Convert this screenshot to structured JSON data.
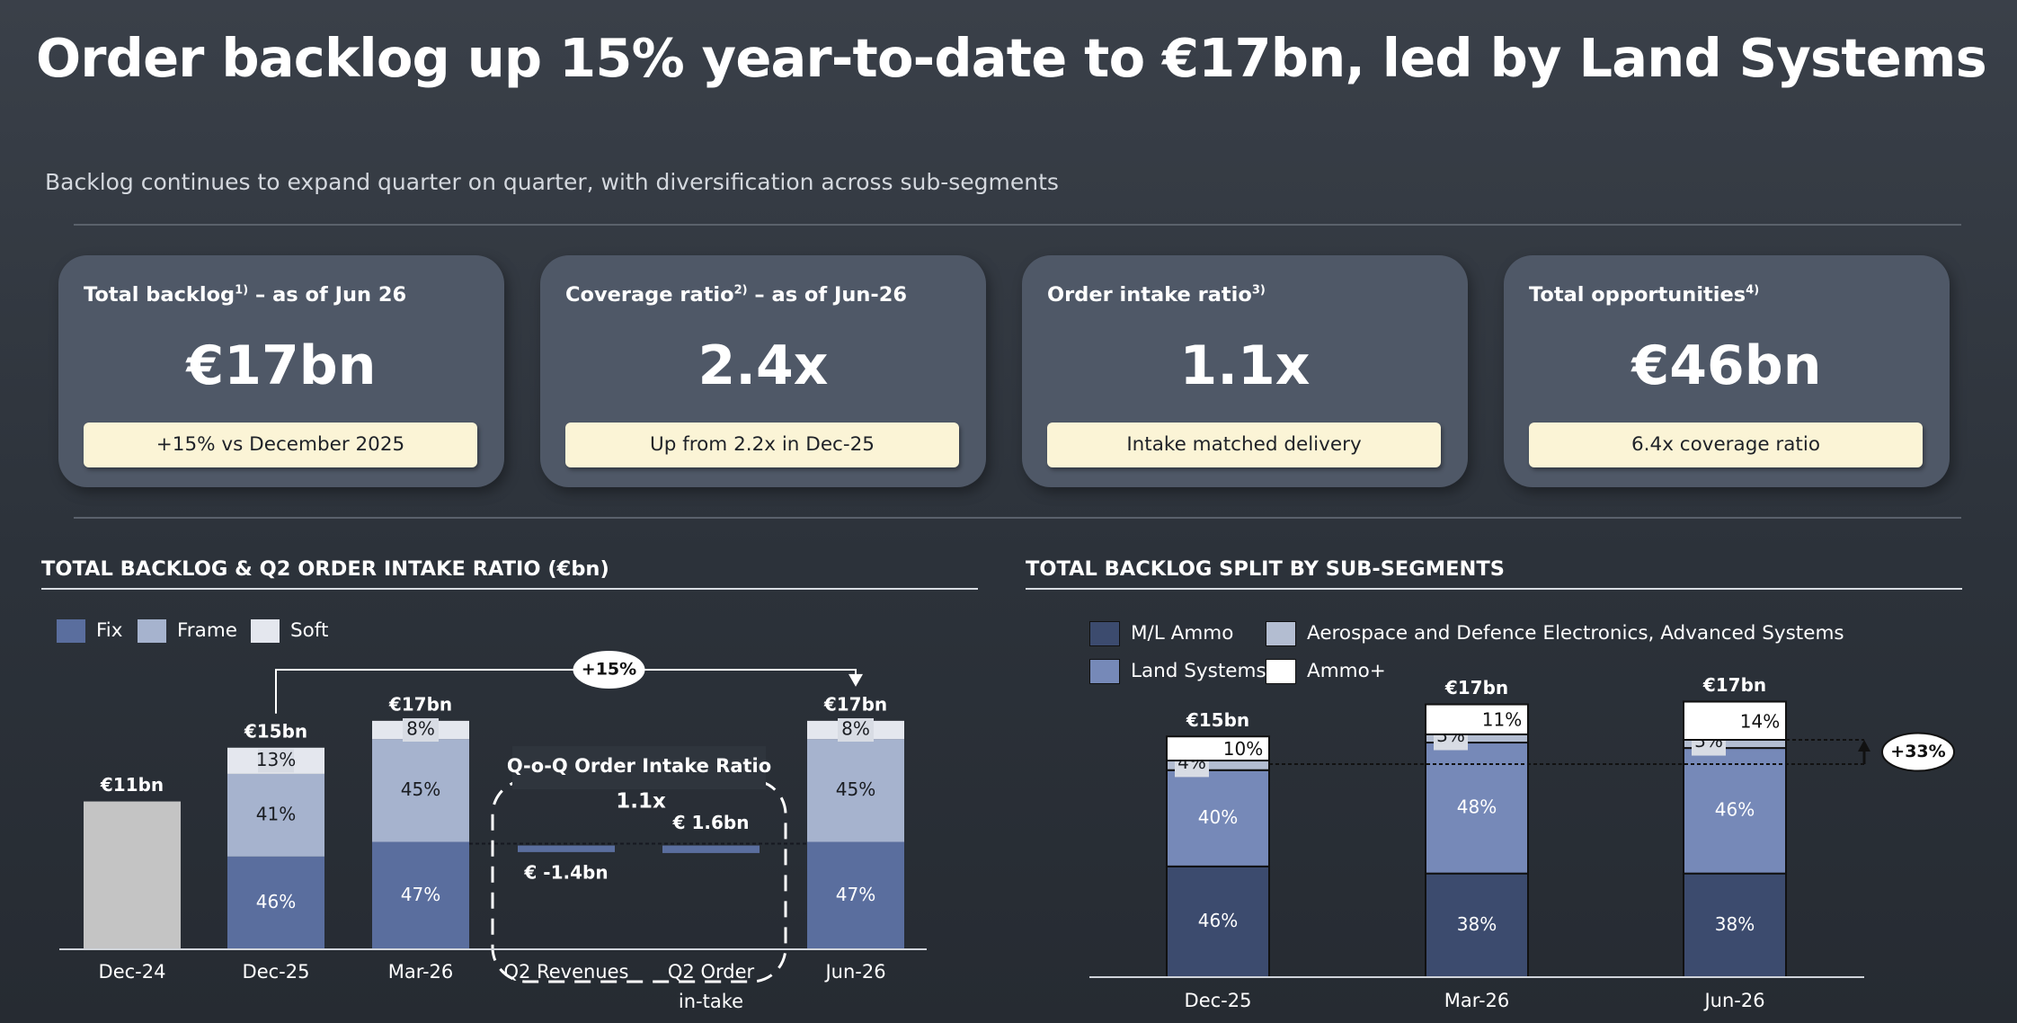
{
  "header": {
    "title": "Order backlog up 15% year-to-date to €17bn, led by Land Systems",
    "subtitle": "Backlog continues to expand quarter on quarter, with diversification across sub-segments"
  },
  "kpis": [
    {
      "label": "Total backlog",
      "sup": "1)",
      "suffix": " – as of Jun 26",
      "value": "€17bn",
      "note": "+15% vs December 2025"
    },
    {
      "label": "Coverage ratio",
      "sup": "2)",
      "suffix": " – as of Jun-26",
      "value": "2.4x",
      "note": "Up from 2.2x in Dec-25"
    },
    {
      "label": "Order intake ratio",
      "sup": "3)",
      "suffix": "",
      "value": "1.1x",
      "note": "Intake matched delivery"
    },
    {
      "label": "Total opportunities",
      "sup": "4)",
      "suffix": "",
      "value": "€46bn",
      "note": "6.4x coverage ratio"
    }
  ],
  "colors": {
    "fix": "#5a6e9e",
    "frame": "#a6b3ce",
    "soft": "#e4e7ee",
    "dec24": "#c4c4c4",
    "ml_ammo": "#3c4b6e",
    "land": "#7689b8",
    "aero": "#b3bdd1",
    "ammo_plus": "#ffffff"
  },
  "chart_data": [
    {
      "type": "bar",
      "title": "TOTAL BACKLOG & Q2 ORDER INTAKE RATIO (€bn)",
      "legend": [
        {
          "key": "fix",
          "label": "Fix"
        },
        {
          "key": "frame",
          "label": "Frame"
        },
        {
          "key": "soft",
          "label": "Soft"
        }
      ],
      "stacked": [
        {
          "category": "Dec-24",
          "total": 11,
          "total_label": "€11bn",
          "segments": [
            {
              "key": "dec24",
              "value": 11,
              "label": ""
            }
          ]
        },
        {
          "category": "Dec-25",
          "total": 15,
          "total_label": "€15bn",
          "segments": [
            {
              "key": "fix",
              "value": 6.9,
              "label": "46%"
            },
            {
              "key": "frame",
              "value": 6.15,
              "label": "41%"
            },
            {
              "key": "soft",
              "value": 1.95,
              "label": "13%"
            }
          ]
        },
        {
          "category": "Mar-26",
          "total": 17,
          "total_label": "€17bn",
          "segments": [
            {
              "key": "fix",
              "value": 7.99,
              "label": "47%"
            },
            {
              "key": "frame",
              "value": 7.65,
              "label": "45%"
            },
            {
              "key": "soft",
              "value": 1.36,
              "label": "8%"
            }
          ]
        },
        {
          "category": "Jun-26",
          "total": 17,
          "total_label": "€17bn",
          "segments": [
            {
              "key": "fix",
              "value": 7.99,
              "label": "47%"
            },
            {
              "key": "frame",
              "value": 7.65,
              "label": "45%"
            },
            {
              "key": "soft",
              "value": 1.36,
              "label": "8%"
            }
          ]
        }
      ],
      "floating": [
        {
          "category": "Q2 Revenues",
          "category_lines": [
            "Q2 Revenues"
          ],
          "value": -1.4,
          "label": "€ -1.4bn"
        },
        {
          "category": "Q2 Order in-take",
          "category_lines": [
            "Q2 Order",
            "in-take"
          ],
          "value": 1.6,
          "label": "€ 1.6bn"
        }
      ],
      "ratio_box": {
        "title": "Q-o-Q Order Intake Ratio",
        "value": "1.1x"
      },
      "growth_callout": {
        "label": "+15%",
        "from": "Dec-25",
        "to": "Jun-26"
      },
      "categories": [
        "Dec-24",
        "Dec-25",
        "Mar-26",
        "Q2 Revenues",
        "Q2 Order in-take",
        "Jun-26"
      ],
      "ylim": [
        0,
        20
      ]
    },
    {
      "type": "bar",
      "title": "TOTAL BACKLOG SPLIT BY SUB-SEGMENTS",
      "legend": [
        {
          "key": "ml_ammo",
          "label": "M/L Ammo"
        },
        {
          "key": "aero",
          "label": "Aerospace and Defence Electronics, Advanced Systems"
        },
        {
          "key": "land",
          "label": "Land Systems"
        },
        {
          "key": "ammo_plus",
          "label": "Ammo+"
        }
      ],
      "categories": [
        "Dec-25",
        "Mar-26",
        "Jun-26"
      ],
      "bars": [
        {
          "category": "Dec-25",
          "total_label": "€15bn",
          "segments": [
            {
              "key": "ml_ammo",
              "pct": 46,
              "label": "46%"
            },
            {
              "key": "land",
              "pct": 40,
              "label": "40%"
            },
            {
              "key": "aero",
              "pct": 4,
              "label": "4%"
            },
            {
              "key": "ammo_plus",
              "pct": 10,
              "label": "10%"
            }
          ]
        },
        {
          "category": "Mar-26",
          "total_label": "€17bn",
          "segments": [
            {
              "key": "ml_ammo",
              "pct": 38,
              "label": "38%"
            },
            {
              "key": "land",
              "pct": 48,
              "label": "48%"
            },
            {
              "key": "aero",
              "pct": 3,
              "label": "3%"
            },
            {
              "key": "ammo_plus",
              "pct": 11,
              "label": "11%"
            }
          ]
        },
        {
          "category": "Jun-26",
          "total_label": "€17bn",
          "segments": [
            {
              "key": "ml_ammo",
              "pct": 38,
              "label": "38%"
            },
            {
              "key": "land",
              "pct": 46,
              "label": "46%"
            },
            {
              "key": "aero",
              "pct": 3,
              "label": "3%"
            },
            {
              "key": "ammo_plus",
              "pct": 14,
              "label": "14%"
            }
          ]
        }
      ],
      "totals": [
        15,
        17,
        17
      ],
      "growth_callout": {
        "label": "+33%"
      }
    }
  ]
}
